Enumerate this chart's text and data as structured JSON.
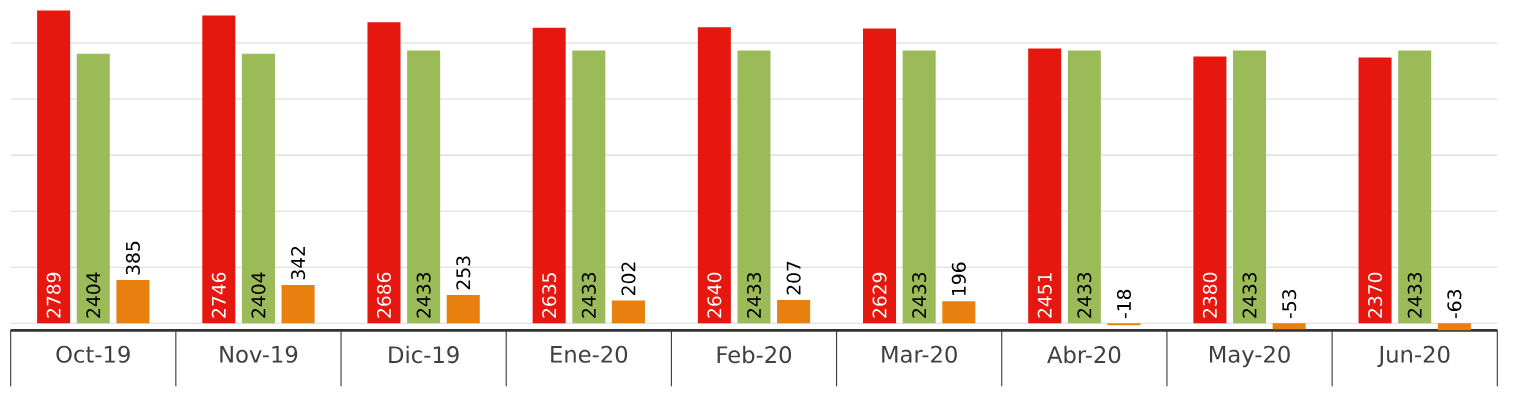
{
  "chart_data": {
    "type": "bar",
    "categories": [
      "Oct-19",
      "Nov-19",
      "Dic-19",
      "Ene-20",
      "Feb-20",
      "Mar-20",
      "Abr-20",
      "May-20",
      "Jun-20"
    ],
    "series": [
      {
        "color": "#e5170f",
        "values": [
          2789,
          2746,
          2686,
          2635,
          2640,
          2629,
          2451,
          2380,
          2370
        ]
      },
      {
        "color": "#9bbb59",
        "values": [
          2404,
          2404,
          2433,
          2433,
          2433,
          2433,
          2433,
          2433,
          2433
        ]
      },
      {
        "color": "#e8800f",
        "values": [
          385,
          342,
          253,
          202,
          207,
          196,
          -18,
          -53,
          -63
        ]
      }
    ],
    "grid": "y",
    "data_labels": true,
    "tick_labels": "x"
  }
}
